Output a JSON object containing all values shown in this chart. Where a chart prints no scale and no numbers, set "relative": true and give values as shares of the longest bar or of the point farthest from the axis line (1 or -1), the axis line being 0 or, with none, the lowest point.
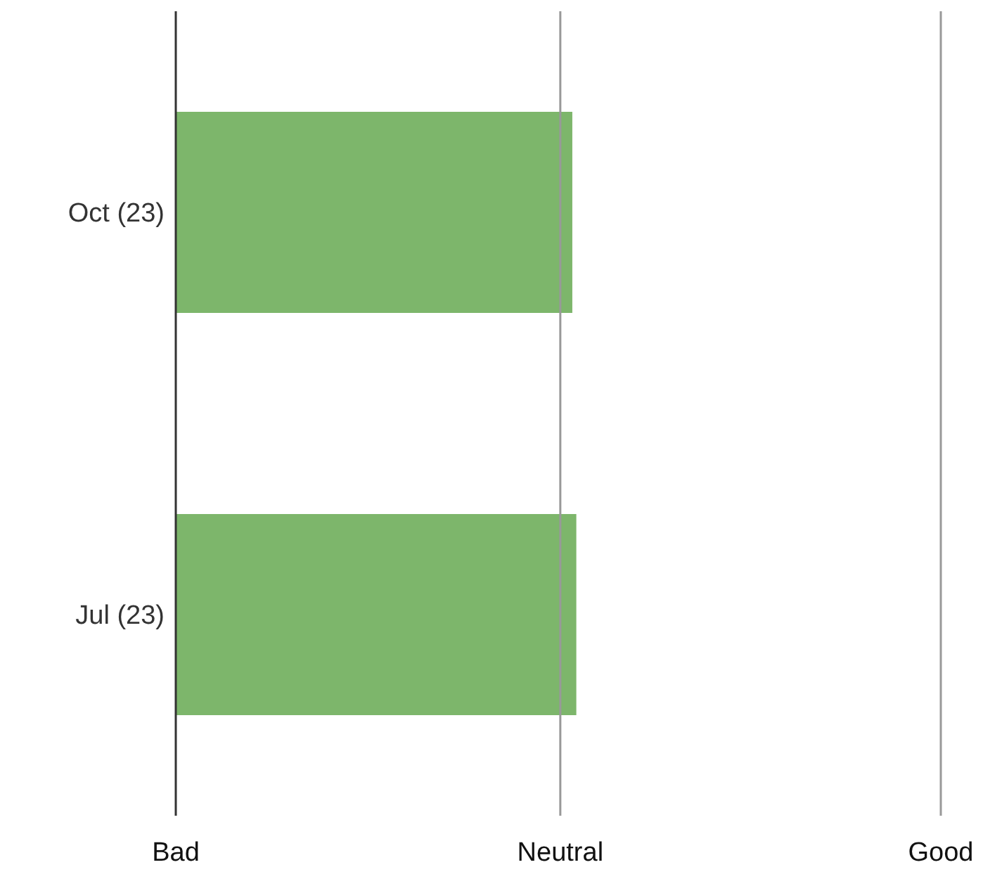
{
  "chart_data": {
    "type": "bar",
    "orientation": "horizontal",
    "categories": [
      "Oct (23)",
      "Jul (23)"
    ],
    "values": [
      0.99,
      1
    ],
    "color": "#7db66b",
    "relative": true,
    "ref_lines": [
      {
        "axis": "x",
        "value": 0.96,
        "label": "Neutral",
        "color": "#999999"
      },
      {
        "axis": "x",
        "value": 1.91,
        "label": "Good",
        "color": "#999999"
      }
    ],
    "annotations": [
      "Bad"
    ],
    "legend": false
  }
}
